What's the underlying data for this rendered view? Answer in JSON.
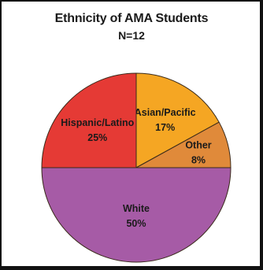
{
  "chart_data": {
    "type": "pie",
    "title": "Ethnicity of AMA Students",
    "subtitle": "N=12",
    "slices": [
      {
        "label": "Asian/Pacific",
        "value": 17,
        "value_label": "17%",
        "color": "#F5A623"
      },
      {
        "label": "Other",
        "value": 8,
        "value_label": "8%",
        "color": "#E08A3A"
      },
      {
        "label": "White",
        "value": 50,
        "value_label": "50%",
        "color": "#A65BA6"
      },
      {
        "label": "Hispanic/Latino",
        "value": 25,
        "value_label": "25%",
        "color": "#E53A35"
      }
    ],
    "start_angle_deg": 0,
    "direction": "clockwise",
    "slice_border_color": "#3a2a1a"
  }
}
